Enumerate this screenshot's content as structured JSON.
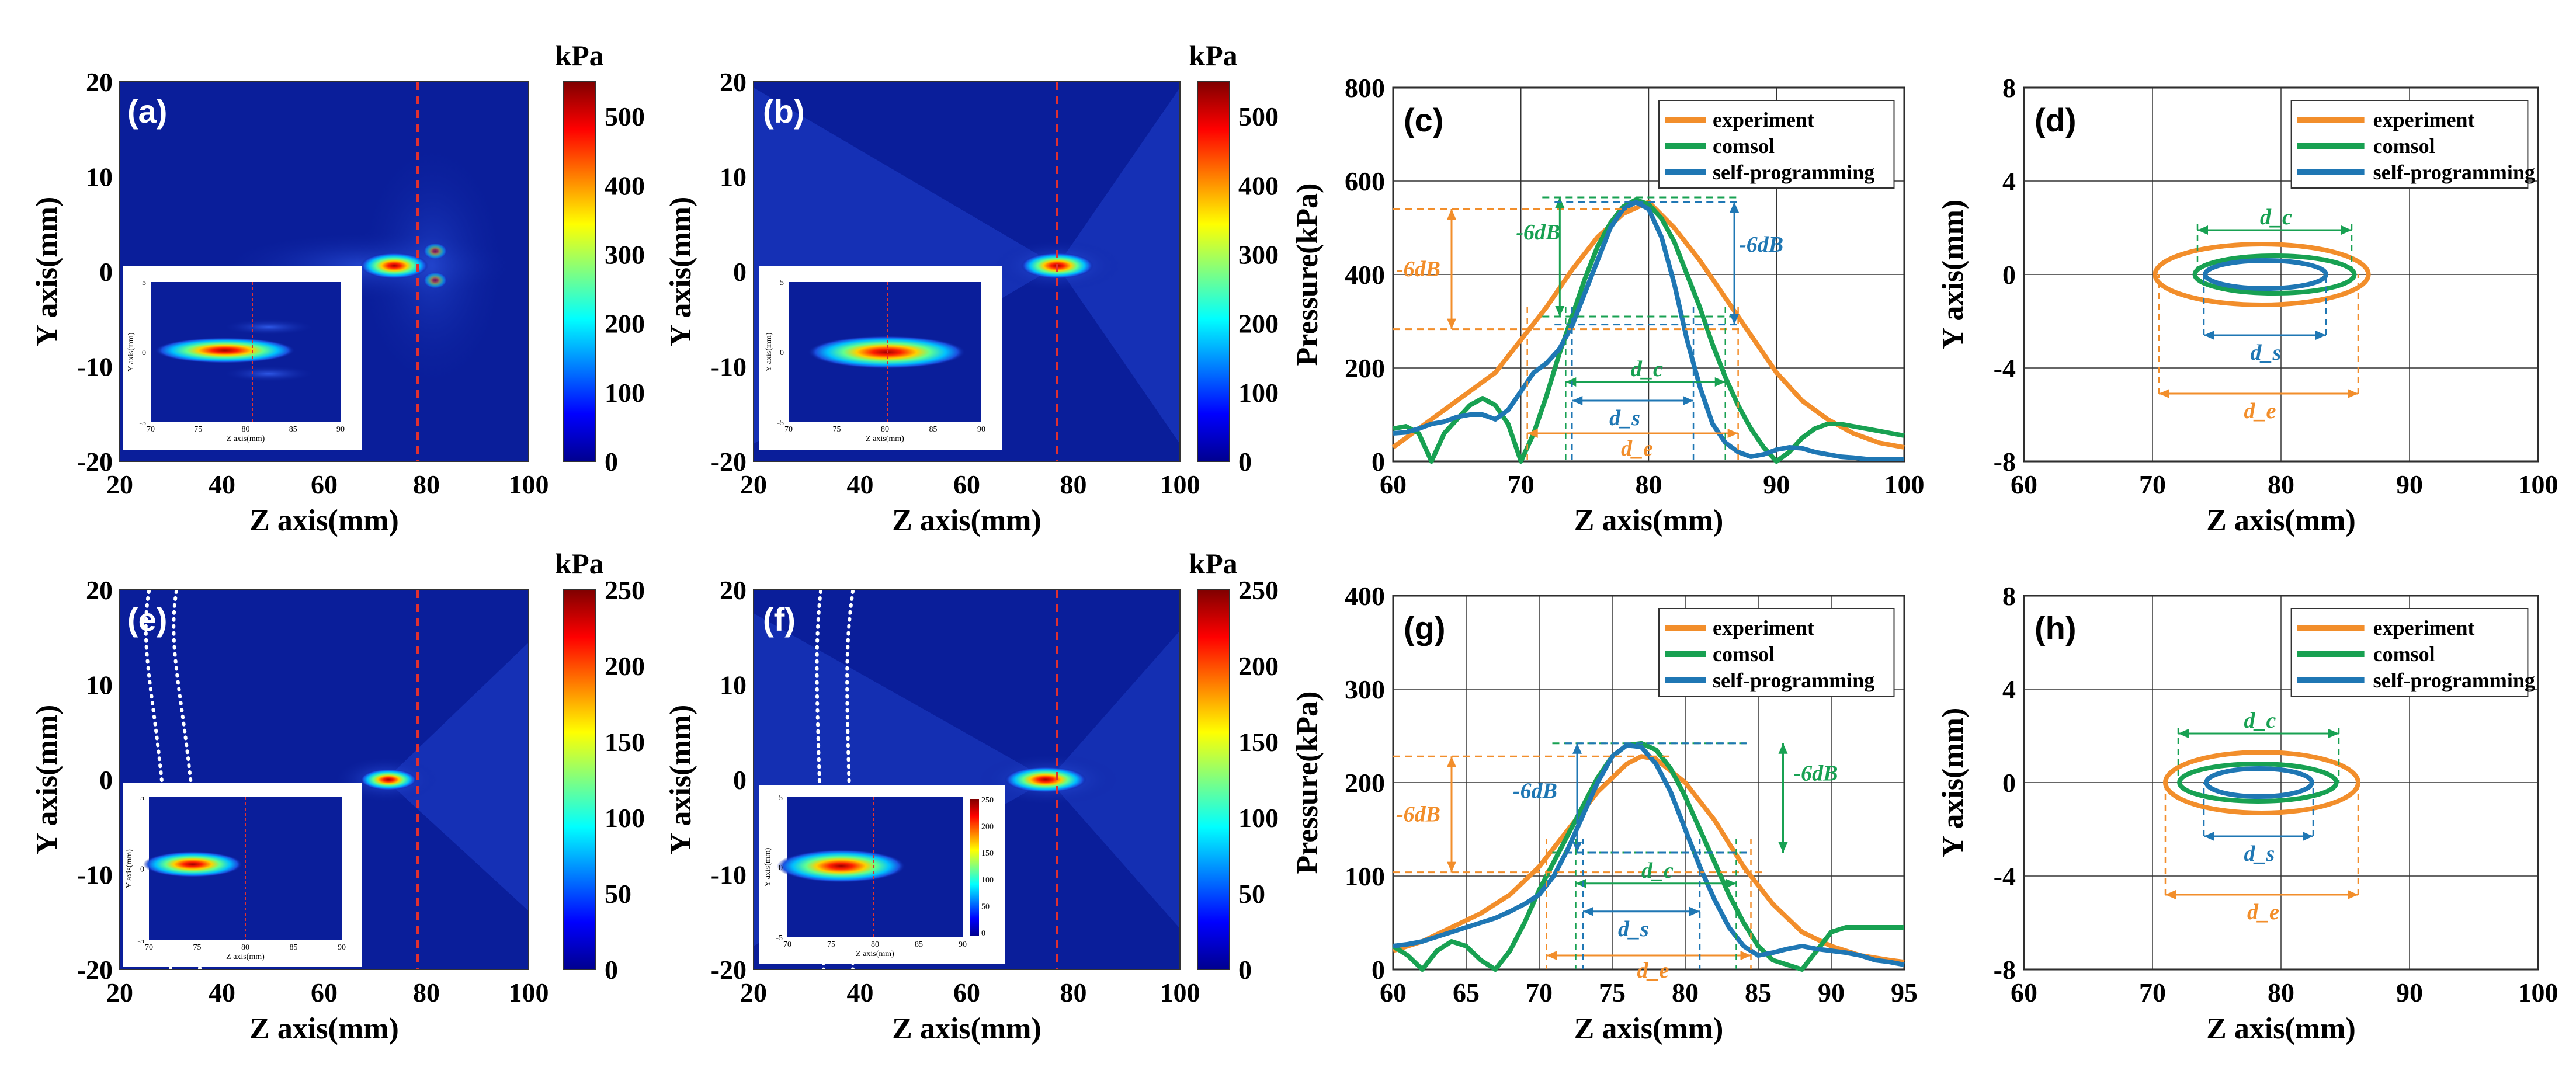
{
  "colors": {
    "experiment": "#F28E2B",
    "comsol": "#18A152",
    "self": "#1F77B4",
    "focus_line": "#E03030",
    "field_bg": "#0a1e9a"
  },
  "colorbars": [
    {
      "panel": "a",
      "unit": "kPa",
      "ticks": [
        "500",
        "400",
        "300",
        "200",
        "100",
        "0"
      ],
      "values": [
        500,
        400,
        300,
        200,
        100,
        0
      ],
      "max": 550
    },
    {
      "panel": "b",
      "unit": "kPa",
      "ticks": [
        "500",
        "400",
        "300",
        "200",
        "100",
        "0"
      ],
      "values": [
        500,
        400,
        300,
        200,
        100,
        0
      ],
      "max": 550
    },
    {
      "panel": "e",
      "unit": "kPa",
      "ticks": [
        "250",
        "200",
        "150",
        "100",
        "50",
        "0"
      ],
      "values": [
        250,
        200,
        150,
        100,
        50,
        0
      ],
      "max": 250
    },
    {
      "panel": "f",
      "unit": "kPa",
      "ticks": [
        "250",
        "200",
        "150",
        "100",
        "50",
        "0"
      ],
      "values": [
        250,
        200,
        150,
        100,
        50,
        0
      ],
      "max": 250
    }
  ],
  "chart_data": [
    {
      "id": "a",
      "type": "heatmap",
      "label": "(a)",
      "xlabel": "Z axis(mm)",
      "ylabel": "Y axis(mm)",
      "xticks": [
        "20",
        "40",
        "60",
        "80",
        "100"
      ],
      "yticks": [
        "20",
        "10",
        "0",
        "-10",
        "-20"
      ],
      "xlim": [
        20,
        100
      ],
      "ylim": [
        -20,
        20
      ],
      "focus_z": 78,
      "focus_line_z": 80,
      "peak_kPa": 550,
      "inset": {
        "xlabel": "Z axis(mm)",
        "ylabel": "Y axis(mm)",
        "xticks": [
          "70",
          "75",
          "80",
          "85",
          "90"
        ],
        "yticks": [
          "5",
          "0",
          "-5"
        ]
      }
    },
    {
      "id": "b",
      "type": "heatmap",
      "label": "(b)",
      "xlabel": "Z axis(mm)",
      "ylabel": "Y axis(mm)",
      "xticks": [
        "20",
        "40",
        "60",
        "80",
        "100"
      ],
      "yticks": [
        "20",
        "10",
        "0",
        "-10",
        "-20"
      ],
      "xlim": [
        20,
        100
      ],
      "ylim": [
        -20,
        20
      ],
      "focus_z": 80,
      "focus_line_z": 80,
      "peak_kPa": 550,
      "inset": {
        "xlabel": "Z axis(mm)",
        "ylabel": "Y axis(mm)",
        "xticks": [
          "70",
          "75",
          "80",
          "85",
          "90"
        ],
        "yticks": [
          "5",
          "0",
          "-5"
        ]
      }
    },
    {
      "id": "c",
      "type": "line",
      "label": "(c)",
      "title": "",
      "xlabel": "Z axis(mm)",
      "ylabel": "Pressure(kPa)",
      "xticks": [
        "60",
        "70",
        "80",
        "90",
        "100"
      ],
      "yticks": [
        "800",
        "600",
        "400",
        "200",
        "0"
      ],
      "xlim": [
        60,
        100
      ],
      "ylim": [
        0,
        800
      ],
      "legend": [
        "experiment",
        "comsol",
        "self-programming"
      ],
      "series": [
        {
          "name": "experiment",
          "x": [
            60,
            62,
            64,
            66,
            68,
            70,
            72,
            74,
            76,
            78,
            80,
            82,
            84,
            86,
            88,
            90,
            92,
            94,
            96,
            98,
            100
          ],
          "y": [
            30,
            70,
            110,
            150,
            190,
            260,
            330,
            410,
            480,
            530,
            555,
            500,
            430,
            350,
            270,
            190,
            130,
            90,
            60,
            40,
            30
          ]
        },
        {
          "name": "comsol",
          "x": [
            60,
            61,
            62,
            63,
            64,
            65,
            66,
            67,
            68,
            69,
            70,
            71,
            72,
            73,
            74,
            75,
            76,
            77,
            78,
            79,
            80,
            81,
            82,
            83,
            84,
            85,
            86,
            87,
            88,
            89,
            90,
            91,
            92,
            93,
            94,
            95,
            96,
            97,
            98,
            99,
            100
          ],
          "y": [
            70,
            75,
            60,
            0,
            60,
            90,
            120,
            135,
            120,
            80,
            0,
            60,
            140,
            230,
            310,
            390,
            460,
            510,
            545,
            560,
            550,
            520,
            470,
            400,
            330,
            250,
            180,
            120,
            70,
            30,
            0,
            20,
            50,
            70,
            80,
            80,
            75,
            70,
            65,
            60,
            55
          ]
        },
        {
          "name": "self-programming",
          "x": [
            60,
            61,
            62,
            63,
            64,
            65,
            66,
            67,
            68,
            69,
            70,
            71,
            72,
            73,
            74,
            75,
            76,
            77,
            78,
            79,
            80,
            81,
            82,
            83,
            84,
            85,
            86,
            87,
            88,
            89,
            90,
            91,
            92,
            93,
            94,
            95,
            96,
            97,
            98,
            99,
            100
          ],
          "y": [
            60,
            62,
            70,
            80,
            85,
            95,
            100,
            100,
            90,
            110,
            150,
            190,
            210,
            240,
            290,
            360,
            430,
            500,
            540,
            555,
            540,
            480,
            380,
            260,
            160,
            80,
            40,
            20,
            10,
            15,
            25,
            30,
            28,
            20,
            15,
            10,
            8,
            5,
            5,
            5,
            5
          ]
        }
      ],
      "annotations": {
        "db_exp": "-6dB",
        "db_comsol": "-6dB",
        "db_self": "-6dB",
        "d_c": "d_c",
        "d_s": "d_s",
        "d_e": "d_e"
      },
      "levels": {
        "exp_high": 540,
        "exp_low": 283,
        "comsol_high": 565,
        "comsol_low": 310,
        "self_high": 555,
        "self_low": 293
      },
      "widths": {
        "e": [
          70.5,
          87.0
        ],
        "c": [
          73.5,
          86.0
        ],
        "s": [
          74.0,
          83.5
        ]
      }
    },
    {
      "id": "d",
      "type": "scatter",
      "label": "(d)",
      "xlabel": "Z axis(mm)",
      "ylabel": "Y axis(mm)",
      "xticks": [
        "60",
        "70",
        "80",
        "90",
        "100"
      ],
      "yticks": [
        "8",
        "4",
        "0",
        "-4",
        "-8"
      ],
      "xlim": [
        60,
        100
      ],
      "ylim": [
        -8,
        8
      ],
      "legend": [
        "experiment",
        "comsol",
        "self-programming"
      ],
      "ellipses": [
        {
          "name": "experiment",
          "cx": 78.5,
          "cy": 0,
          "rx": 8.3,
          "ry": 1.3
        },
        {
          "name": "comsol",
          "cx": 79.5,
          "cy": 0,
          "rx": 6.2,
          "ry": 0.8
        },
        {
          "name": "self-programming",
          "cx": 78.8,
          "cy": 0,
          "rx": 4.7,
          "ry": 0.6
        }
      ],
      "annotations": {
        "d_c": "d_c",
        "d_s": "d_s",
        "d_e": "d_e"
      },
      "widths": {
        "c": [
          73.5,
          85.5
        ],
        "s": [
          74.0,
          83.5
        ],
        "e": [
          70.5,
          86.0
        ]
      },
      "anno_y": {
        "c": 1.9,
        "s": -2.6,
        "e": -5.1
      }
    },
    {
      "id": "e",
      "type": "heatmap",
      "label": "(e)",
      "xlabel": "Z axis(mm)",
      "ylabel": "Y axis(mm)",
      "xticks": [
        "20",
        "40",
        "60",
        "80",
        "100"
      ],
      "yticks": [
        "20",
        "10",
        "0",
        "-10",
        "-20"
      ],
      "xlim": [
        20,
        100
      ],
      "ylim": [
        -20,
        20
      ],
      "focus_z": 74,
      "focus_line_z": 80,
      "peak_kPa": 250,
      "inset": {
        "xlabel": "Z axis(mm)",
        "ylabel": "Y axis(mm)",
        "xticks": [
          "70",
          "75",
          "80",
          "85",
          "90"
        ],
        "yticks": [
          "5",
          "0",
          "-5"
        ]
      }
    },
    {
      "id": "f",
      "type": "heatmap",
      "label": "(f)",
      "xlabel": "Z axis(mm)",
      "ylabel": "Y axis(mm)",
      "xticks": [
        "20",
        "40",
        "60",
        "80",
        "100"
      ],
      "yticks": [
        "20",
        "10",
        "0",
        "-10",
        "-20"
      ],
      "xlim": [
        20,
        100
      ],
      "ylim": [
        -20,
        20
      ],
      "focus_z": 77,
      "focus_line_z": 80,
      "peak_kPa": 250,
      "inset": {
        "xlabel": "Z axis(mm)",
        "ylabel": "Y axis(mm)",
        "xticks": [
          "70",
          "75",
          "80",
          "85",
          "90"
        ],
        "yticks": [
          "5",
          "0",
          "-5"
        ],
        "cbar_ticks": [
          "250",
          "200",
          "150",
          "100",
          "50",
          "0"
        ]
      }
    },
    {
      "id": "g",
      "type": "line",
      "label": "(g)",
      "xlabel": "Z axis(mm)",
      "ylabel": "Pressure(kPa)",
      "xticks": [
        "60",
        "65",
        "70",
        "75",
        "80",
        "85",
        "90",
        "95"
      ],
      "yticks": [
        "400",
        "300",
        "200",
        "100",
        "0"
      ],
      "xlim": [
        60,
        95
      ],
      "ylim": [
        0,
        400
      ],
      "legend": [
        "experiment",
        "comsol",
        "self-programming"
      ],
      "series": [
        {
          "name": "experiment",
          "x": [
            60,
            62,
            64,
            66,
            68,
            70,
            72,
            74,
            76,
            77,
            78,
            80,
            82,
            84,
            86,
            88,
            90,
            92,
            94,
            95
          ],
          "y": [
            20,
            30,
            45,
            60,
            80,
            110,
            150,
            190,
            220,
            228,
            225,
            200,
            160,
            110,
            70,
            40,
            25,
            15,
            10,
            8
          ]
        },
        {
          "name": "comsol",
          "x": [
            60,
            61,
            62,
            63,
            64,
            65,
            66,
            67,
            68,
            69,
            70,
            71,
            72,
            73,
            74,
            75,
            76,
            77,
            78,
            79,
            80,
            81,
            82,
            83,
            84,
            85,
            86,
            87,
            88,
            89,
            90,
            91,
            92,
            93,
            94,
            95
          ],
          "y": [
            25,
            15,
            0,
            20,
            30,
            25,
            10,
            0,
            20,
            50,
            85,
            115,
            145,
            175,
            205,
            228,
            240,
            242,
            235,
            215,
            185,
            150,
            115,
            80,
            50,
            25,
            10,
            5,
            0,
            20,
            40,
            45,
            45,
            45,
            45,
            45
          ]
        },
        {
          "name": "self-programming",
          "x": [
            60,
            61,
            62,
            63,
            64,
            65,
            66,
            67,
            68,
            69,
            70,
            71,
            72,
            73,
            74,
            75,
            76,
            77,
            78,
            79,
            80,
            81,
            82,
            83,
            84,
            85,
            86,
            87,
            88,
            89,
            90,
            91,
            92,
            93,
            94,
            95
          ],
          "y": [
            25,
            27,
            30,
            35,
            40,
            45,
            50,
            55,
            62,
            70,
            80,
            100,
            130,
            165,
            200,
            228,
            240,
            238,
            220,
            190,
            150,
            110,
            75,
            45,
            25,
            15,
            18,
            22,
            25,
            22,
            20,
            18,
            15,
            10,
            8,
            5
          ]
        }
      ],
      "annotations": {
        "db_exp": "-6dB",
        "db_comsol": "-6dB",
        "db_self": "-6dB",
        "d_c": "d_c",
        "d_s": "d_s",
        "d_e": "d_e"
      },
      "levels": {
        "exp_high": 228,
        "exp_low": 104,
        "comsol_high": 242,
        "comsol_low": 125,
        "self_high": 242,
        "self_low": 125
      },
      "widths": {
        "e": [
          70.5,
          84.5
        ],
        "c": [
          72.5,
          83.5
        ],
        "s": [
          73.0,
          81.0
        ]
      }
    },
    {
      "id": "h",
      "type": "scatter",
      "label": "(h)",
      "xlabel": "Z axis(mm)",
      "ylabel": "Y axis(mm)",
      "xticks": [
        "60",
        "70",
        "80",
        "90",
        "100"
      ],
      "yticks": [
        "8",
        "4",
        "0",
        "-4",
        "-8"
      ],
      "xlim": [
        60,
        100
      ],
      "ylim": [
        -8,
        8
      ],
      "legend": [
        "experiment",
        "comsol",
        "self-programming"
      ],
      "ellipses": [
        {
          "name": "experiment",
          "cx": 78.5,
          "cy": 0,
          "rx": 7.5,
          "ry": 1.3
        },
        {
          "name": "comsol",
          "cx": 78.2,
          "cy": 0,
          "rx": 6.1,
          "ry": 0.8
        },
        {
          "name": "self-programming",
          "cx": 78.3,
          "cy": 0,
          "rx": 4.1,
          "ry": 0.6
        }
      ],
      "annotations": {
        "d_c": "d_c",
        "d_s": "d_s",
        "d_e": "d_e"
      },
      "widths": {
        "c": [
          72.0,
          84.5
        ],
        "s": [
          74.0,
          82.5
        ],
        "e": [
          71.0,
          86.0
        ]
      },
      "anno_y": {
        "c": 2.1,
        "s": -2.3,
        "e": -4.8
      }
    }
  ]
}
